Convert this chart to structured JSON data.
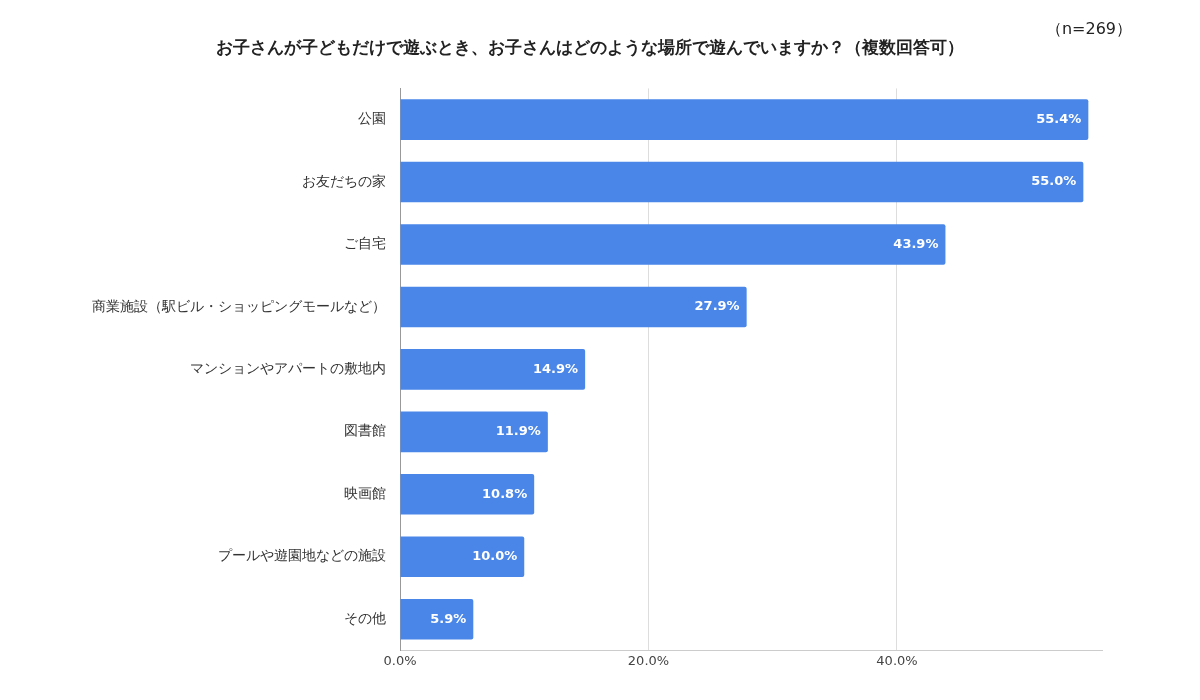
{
  "chart_data": {
    "type": "bar",
    "orientation": "horizontal",
    "title": "お子さんが子どもだけで遊ぶとき、お子さんはどのような場所で遊んでいますか？（複数回答可）",
    "annotations": [
      "（n=269）"
    ],
    "categories": [
      "公園",
      "お友だちの家",
      "ご自宅",
      "商業施設（駅ビル・ショッピングモールなど）",
      "マンションやアパートの敷地内",
      "図書館",
      "映画館",
      "プールや遊園地などの施設",
      "その他"
    ],
    "values": [
      55.4,
      55.0,
      43.9,
      27.9,
      14.9,
      11.9,
      10.8,
      10.0,
      5.9
    ],
    "value_labels": [
      "55.4%",
      "55.0%",
      "43.9%",
      "27.9%",
      "14.9%",
      "11.9%",
      "10.8%",
      "10.0%",
      "5.9%"
    ],
    "color": "#4a86e8",
    "xlim": [
      0,
      56.5
    ],
    "xticks": [
      {
        "value": 0,
        "label": "0.0%"
      },
      {
        "value": 20,
        "label": "20.0%"
      },
      {
        "value": 40,
        "label": "40.0%"
      }
    ],
    "grid": "x",
    "legend": false
  }
}
